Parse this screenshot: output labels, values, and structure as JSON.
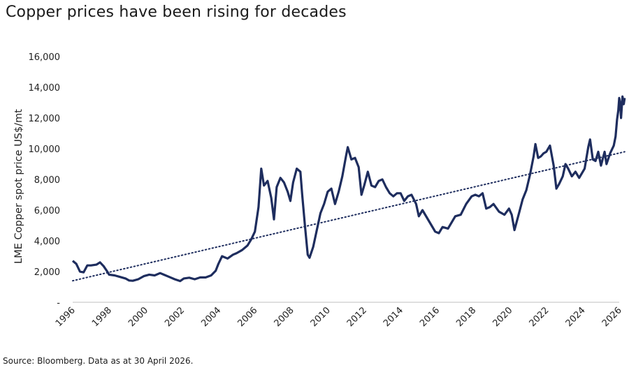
{
  "title": "Copper prices have been rising for decades",
  "source": "Source: Bloomberg. Data as at 30 April 2026.",
  "colors": {
    "series": "#1e2d5e",
    "trend": "#1e2d5e",
    "axis": "#bfbfbf"
  },
  "chart_data": {
    "type": "line",
    "title": "Copper prices have been rising for decades",
    "xlabel": "",
    "ylabel": "LME Copper spot price US$/mt",
    "xlim": [
      1996,
      2026
    ],
    "ylim": [
      0,
      16000
    ],
    "y_ticks": [
      0,
      2000,
      4000,
      6000,
      8000,
      10000,
      12000,
      14000,
      16000
    ],
    "y_tick_labels": [
      "-",
      "2,000",
      "4,000",
      "6,000",
      "8,000",
      "10,000",
      "12,000",
      "14,000",
      "16,000"
    ],
    "x_ticks": [
      1996,
      1998,
      2000,
      2002,
      2004,
      2006,
      2008,
      2010,
      2012,
      2014,
      2016,
      2018,
      2020,
      2022,
      2024,
      2026
    ],
    "x_tick_labels": [
      "1996",
      "1998",
      "2000",
      "2002",
      "2004",
      "2006",
      "2008",
      "2010",
      "2012",
      "2014",
      "2016",
      "2018",
      "2020",
      "2022",
      "2024",
      "2026"
    ],
    "grid": false,
    "series": [
      {
        "values": [
          [
            1996.0,
            2700
          ],
          [
            1996.2,
            2500
          ],
          [
            1996.4,
            2000
          ],
          [
            1996.6,
            1950
          ],
          [
            1996.8,
            2400
          ],
          [
            1997.0,
            2400
          ],
          [
            1997.3,
            2450
          ],
          [
            1997.5,
            2600
          ],
          [
            1997.7,
            2350
          ],
          [
            1997.9,
            2000
          ],
          [
            1998.0,
            1800
          ],
          [
            1998.3,
            1750
          ],
          [
            1998.6,
            1650
          ],
          [
            1998.9,
            1550
          ],
          [
            1999.1,
            1420
          ],
          [
            1999.3,
            1400
          ],
          [
            1999.6,
            1500
          ],
          [
            1999.9,
            1700
          ],
          [
            2000.2,
            1800
          ],
          [
            2000.5,
            1750
          ],
          [
            2000.8,
            1900
          ],
          [
            2001.0,
            1800
          ],
          [
            2001.3,
            1650
          ],
          [
            2001.6,
            1500
          ],
          [
            2001.9,
            1380
          ],
          [
            2002.1,
            1550
          ],
          [
            2002.4,
            1600
          ],
          [
            2002.7,
            1500
          ],
          [
            2003.0,
            1620
          ],
          [
            2003.3,
            1620
          ],
          [
            2003.6,
            1750
          ],
          [
            2003.85,
            2050
          ],
          [
            2004.0,
            2500
          ],
          [
            2004.2,
            3000
          ],
          [
            2004.5,
            2850
          ],
          [
            2004.8,
            3100
          ],
          [
            2005.0,
            3200
          ],
          [
            2005.3,
            3400
          ],
          [
            2005.6,
            3700
          ],
          [
            2005.8,
            4100
          ],
          [
            2006.0,
            4600
          ],
          [
            2006.2,
            6200
          ],
          [
            2006.35,
            8700
          ],
          [
            2006.5,
            7600
          ],
          [
            2006.7,
            7900
          ],
          [
            2006.9,
            6800
          ],
          [
            2007.05,
            5400
          ],
          [
            2007.2,
            7500
          ],
          [
            2007.4,
            8100
          ],
          [
            2007.6,
            7800
          ],
          [
            2007.8,
            7200
          ],
          [
            2007.95,
            6600
          ],
          [
            2008.1,
            7800
          ],
          [
            2008.3,
            8700
          ],
          [
            2008.5,
            8500
          ],
          [
            2008.6,
            7000
          ],
          [
            2008.75,
            5000
          ],
          [
            2008.9,
            3100
          ],
          [
            2009.0,
            2900
          ],
          [
            2009.2,
            3600
          ],
          [
            2009.4,
            4700
          ],
          [
            2009.6,
            5800
          ],
          [
            2009.8,
            6400
          ],
          [
            2010.0,
            7200
          ],
          [
            2010.2,
            7400
          ],
          [
            2010.4,
            6400
          ],
          [
            2010.6,
            7200
          ],
          [
            2010.8,
            8200
          ],
          [
            2011.0,
            9500
          ],
          [
            2011.1,
            10100
          ],
          [
            2011.3,
            9300
          ],
          [
            2011.5,
            9400
          ],
          [
            2011.7,
            8800
          ],
          [
            2011.85,
            7000
          ],
          [
            2012.0,
            7600
          ],
          [
            2012.2,
            8500
          ],
          [
            2012.4,
            7600
          ],
          [
            2012.6,
            7500
          ],
          [
            2012.8,
            7900
          ],
          [
            2013.0,
            8000
          ],
          [
            2013.2,
            7500
          ],
          [
            2013.4,
            7100
          ],
          [
            2013.6,
            6900
          ],
          [
            2013.8,
            7100
          ],
          [
            2014.0,
            7100
          ],
          [
            2014.2,
            6600
          ],
          [
            2014.4,
            6900
          ],
          [
            2014.6,
            7000
          ],
          [
            2014.85,
            6400
          ],
          [
            2015.0,
            5600
          ],
          [
            2015.2,
            6000
          ],
          [
            2015.45,
            5500
          ],
          [
            2015.7,
            5000
          ],
          [
            2015.9,
            4600
          ],
          [
            2016.1,
            4500
          ],
          [
            2016.3,
            4900
          ],
          [
            2016.6,
            4800
          ],
          [
            2016.85,
            5300
          ],
          [
            2017.0,
            5600
          ],
          [
            2017.3,
            5700
          ],
          [
            2017.6,
            6400
          ],
          [
            2017.9,
            6900
          ],
          [
            2018.1,
            7000
          ],
          [
            2018.3,
            6900
          ],
          [
            2018.5,
            7100
          ],
          [
            2018.7,
            6100
          ],
          [
            2018.9,
            6200
          ],
          [
            2019.1,
            6400
          ],
          [
            2019.4,
            5900
          ],
          [
            2019.7,
            5700
          ],
          [
            2019.95,
            6100
          ],
          [
            2020.1,
            5700
          ],
          [
            2020.25,
            4700
          ],
          [
            2020.5,
            5800
          ],
          [
            2020.7,
            6700
          ],
          [
            2020.9,
            7300
          ],
          [
            2021.1,
            8300
          ],
          [
            2021.3,
            9500
          ],
          [
            2021.4,
            10300
          ],
          [
            2021.55,
            9400
          ],
          [
            2021.7,
            9500
          ],
          [
            2021.85,
            9700
          ],
          [
            2022.0,
            9800
          ],
          [
            2022.2,
            10200
          ],
          [
            2022.4,
            8900
          ],
          [
            2022.55,
            7400
          ],
          [
            2022.7,
            7700
          ],
          [
            2022.9,
            8200
          ],
          [
            2023.05,
            9000
          ],
          [
            2023.2,
            8700
          ],
          [
            2023.4,
            8200
          ],
          [
            2023.6,
            8500
          ],
          [
            2023.8,
            8100
          ],
          [
            2023.95,
            8400
          ],
          [
            2024.1,
            8700
          ],
          [
            2024.3,
            10100
          ],
          [
            2024.4,
            10600
          ],
          [
            2024.55,
            9300
          ],
          [
            2024.7,
            9200
          ],
          [
            2024.85,
            9800
          ],
          [
            2025.0,
            8900
          ],
          [
            2025.2,
            9800
          ],
          [
            2025.3,
            9000
          ],
          [
            2025.5,
            9700
          ],
          [
            2025.7,
            10200
          ],
          [
            2025.8,
            10800
          ],
          [
            2025.88,
            11900
          ],
          [
            2025.95,
            12500
          ],
          [
            2026.0,
            13300
          ],
          [
            2026.05,
            13000
          ],
          [
            2026.1,
            12000
          ],
          [
            2026.18,
            13400
          ],
          [
            2026.25,
            12900
          ],
          [
            2026.3,
            13300
          ]
        ]
      }
    ],
    "trendline": {
      "style": "dotted",
      "start": [
        1996,
        1400
      ],
      "end": [
        2026.3,
        9800
      ]
    }
  }
}
